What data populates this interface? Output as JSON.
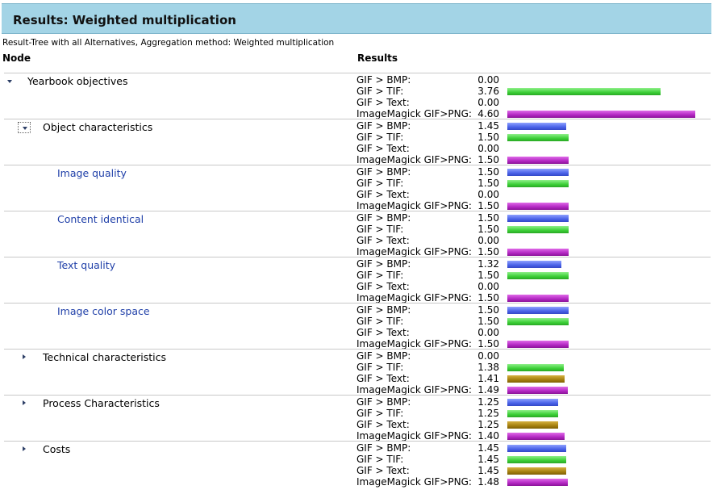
{
  "header": {
    "title": "Results: Weighted multiplication"
  },
  "subtitle": "Result-Tree with all Alternatives, Aggregation method: Weighted multiplication",
  "columns": {
    "node": "Node",
    "results": "Results"
  },
  "alternative_colors": {
    "GIF > BMP:": "#4a62e8",
    "GIF > TIF:": "#3ccf37",
    "GIF > Text:": "#a5800f",
    "ImageMagick GIF>PNG:": "#b227c2"
  },
  "groups": [
    {
      "node": "Yearbook objectives",
      "toggle": "expanded",
      "framed": false,
      "link": false,
      "indent": 0,
      "results": [
        {
          "label": "GIF > BMP:",
          "value": "0.00"
        },
        {
          "label": "GIF > TIF:",
          "value": "3.76"
        },
        {
          "label": "GIF > Text:",
          "value": "0.00"
        },
        {
          "label": "ImageMagick GIF>PNG:",
          "value": "4.60"
        }
      ]
    },
    {
      "node": "Object characteristics",
      "toggle": "expanded",
      "framed": true,
      "link": false,
      "indent": 1,
      "results": [
        {
          "label": "GIF > BMP:",
          "value": "1.45"
        },
        {
          "label": "GIF > TIF:",
          "value": "1.50"
        },
        {
          "label": "GIF > Text:",
          "value": "0.00"
        },
        {
          "label": "ImageMagick GIF>PNG:",
          "value": "1.50"
        }
      ]
    },
    {
      "node": "Image quality",
      "toggle": "none",
      "framed": false,
      "link": true,
      "indent": 2,
      "results": [
        {
          "label": "GIF > BMP:",
          "value": "1.50"
        },
        {
          "label": "GIF > TIF:",
          "value": "1.50"
        },
        {
          "label": "GIF > Text:",
          "value": "0.00"
        },
        {
          "label": "ImageMagick GIF>PNG:",
          "value": "1.50"
        }
      ]
    },
    {
      "node": "Content identical",
      "toggle": "none",
      "framed": false,
      "link": true,
      "indent": 2,
      "results": [
        {
          "label": "GIF > BMP:",
          "value": "1.50"
        },
        {
          "label": "GIF > TIF:",
          "value": "1.50"
        },
        {
          "label": "GIF > Text:",
          "value": "0.00"
        },
        {
          "label": "ImageMagick GIF>PNG:",
          "value": "1.50"
        }
      ]
    },
    {
      "node": "Text quality",
      "toggle": "none",
      "framed": false,
      "link": true,
      "indent": 2,
      "results": [
        {
          "label": "GIF > BMP:",
          "value": "1.32"
        },
        {
          "label": "GIF > TIF:",
          "value": "1.50"
        },
        {
          "label": "GIF > Text:",
          "value": "0.00"
        },
        {
          "label": "ImageMagick GIF>PNG:",
          "value": "1.50"
        }
      ]
    },
    {
      "node": "Image color space",
      "toggle": "none",
      "framed": false,
      "link": true,
      "indent": 2,
      "results": [
        {
          "label": "GIF > BMP:",
          "value": "1.50"
        },
        {
          "label": "GIF > TIF:",
          "value": "1.50"
        },
        {
          "label": "GIF > Text:",
          "value": "0.00"
        },
        {
          "label": "ImageMagick GIF>PNG:",
          "value": "1.50"
        }
      ]
    },
    {
      "node": "Technical characteristics",
      "toggle": "collapsed",
      "framed": false,
      "link": false,
      "indent": 1,
      "results": [
        {
          "label": "GIF > BMP:",
          "value": "0.00"
        },
        {
          "label": "GIF > TIF:",
          "value": "1.38"
        },
        {
          "label": "GIF > Text:",
          "value": "1.41"
        },
        {
          "label": "ImageMagick GIF>PNG:",
          "value": "1.49"
        }
      ]
    },
    {
      "node": "Process Characteristics",
      "toggle": "collapsed",
      "framed": false,
      "link": false,
      "indent": 1,
      "results": [
        {
          "label": "GIF > BMP:",
          "value": "1.25"
        },
        {
          "label": "GIF > TIF:",
          "value": "1.25"
        },
        {
          "label": "GIF > Text:",
          "value": "1.25"
        },
        {
          "label": "ImageMagick GIF>PNG:",
          "value": "1.40"
        }
      ]
    },
    {
      "node": "Costs",
      "toggle": "collapsed",
      "framed": false,
      "link": false,
      "indent": 1,
      "results": [
        {
          "label": "GIF > BMP:",
          "value": "1.45"
        },
        {
          "label": "GIF > TIF:",
          "value": "1.45"
        },
        {
          "label": "GIF > Text:",
          "value": "1.45"
        },
        {
          "label": "ImageMagick GIF>PNG:",
          "value": "1.48"
        }
      ]
    }
  ]
}
